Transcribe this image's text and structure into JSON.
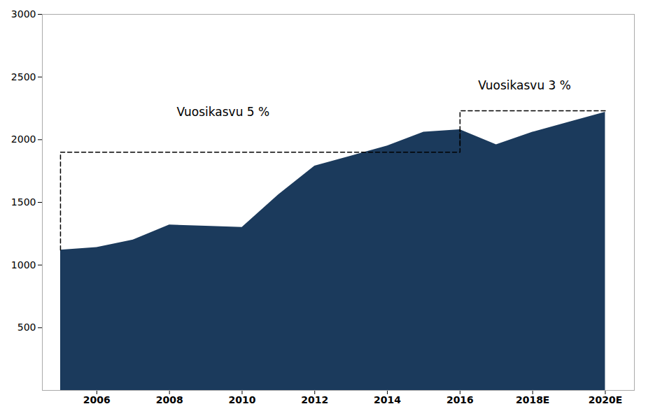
{
  "chart_data": {
    "type": "area",
    "x": [
      2005,
      2006,
      2007,
      2008,
      2009,
      2010,
      2011,
      2012,
      2013,
      2014,
      2015,
      2016,
      2017,
      2018,
      2019,
      2020
    ],
    "values": [
      1120,
      1140,
      1200,
      1320,
      1310,
      1300,
      1560,
      1790,
      1870,
      1950,
      2060,
      2080,
      1960,
      2060,
      2140,
      2220
    ],
    "color": "#1b3a5c",
    "xlim": [
      2004.5,
      2020.8
    ],
    "xticks": [
      2006,
      2008,
      2010,
      2012,
      2014,
      2016,
      {
        "value": 2018,
        "label": "2018E"
      },
      {
        "value": 2020,
        "label": "2020E"
      }
    ],
    "ylim": [
      0,
      3000
    ],
    "yticks": [
      500,
      1000,
      1500,
      2000,
      2500,
      3000
    ],
    "grid": false,
    "annotations": [
      {
        "text": "Vuosikasvu 5 %",
        "x": 2008.2,
        "y": 2220,
        "line_style": "dashed",
        "box": {
          "x0": 2005.0,
          "x1": 2016.0,
          "bottom": 1120,
          "level": 1900,
          "end": 2080
        }
      },
      {
        "text": "Vuosikasvu 3 %",
        "x": 2016.5,
        "y": 2430,
        "line_style": "dashed",
        "box": {
          "x0": 2016.0,
          "x1": 2020.0,
          "bottom": 1960,
          "level": 2230,
          "end": 2220
        }
      }
    ]
  }
}
